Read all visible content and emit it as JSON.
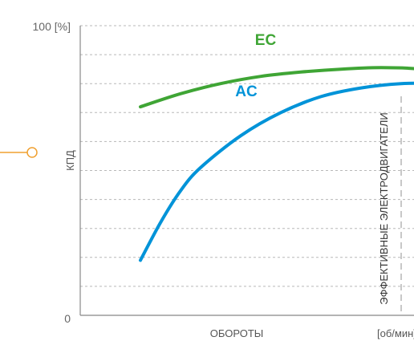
{
  "chart_data": {
    "type": "line",
    "title": "",
    "xlabel": "ОБОРОТЫ",
    "x_unit_label": "[об/мин]",
    "ylabel": "КПД",
    "y_tick_labels": {
      "top": "100 [%]",
      "bottom": "0"
    },
    "xlim": [
      0,
      100
    ],
    "ylim": [
      0,
      100
    ],
    "grid": {
      "horizontal": true,
      "style": "dashed"
    },
    "series": [
      {
        "name": "EC",
        "color": "#3fa535",
        "x": [
          15,
          25,
          35,
          45,
          55,
          65,
          75,
          85,
          95
        ],
        "y": [
          72,
          76.5,
          80,
          82.5,
          84,
          85,
          85.5,
          85,
          83
        ]
      },
      {
        "name": "AC",
        "color": "#0093d8",
        "x": [
          15,
          20,
          25,
          30,
          40,
          50,
          60,
          70,
          80,
          88,
          95
        ],
        "y": [
          19,
          32,
          43,
          51,
          62,
          70,
          75.5,
          78.5,
          80,
          80,
          79.5
        ]
      }
    ],
    "reference_line": {
      "x": 80,
      "label": "ЭФФЕКТИВНЫЕ ЭЛЕКТРОДВИГАТЕЛИ",
      "color": "#999999"
    }
  }
}
